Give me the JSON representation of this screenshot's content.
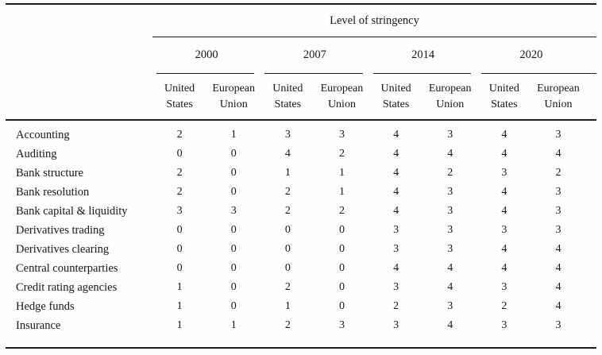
{
  "table": {
    "spanner": "Level of stringency",
    "year_groups": [
      {
        "year": "2000"
      },
      {
        "year": "2007"
      },
      {
        "year": "2014"
      },
      {
        "year": "2020"
      }
    ],
    "sub_headers": {
      "us_line1": "United",
      "us_line2": "States",
      "eu_line1": "European",
      "eu_line2": "Union"
    },
    "rows": [
      {
        "label": "Accounting",
        "values": [
          "2",
          "1",
          "3",
          "3",
          "4",
          "3",
          "4",
          "3"
        ]
      },
      {
        "label": "Auditing",
        "values": [
          "0",
          "0",
          "4",
          "2",
          "4",
          "4",
          "4",
          "4"
        ]
      },
      {
        "label": "Bank structure",
        "values": [
          "2",
          "0",
          "1",
          "1",
          "4",
          "2",
          "3",
          "2"
        ]
      },
      {
        "label": "Bank resolution",
        "values": [
          "2",
          "0",
          "2",
          "1",
          "4",
          "3",
          "4",
          "3"
        ]
      },
      {
        "label": "Bank capital & liquidity",
        "values": [
          "3",
          "3",
          "2",
          "2",
          "4",
          "3",
          "4",
          "3"
        ]
      },
      {
        "label": "Derivatives trading",
        "values": [
          "0",
          "0",
          "0",
          "0",
          "3",
          "3",
          "3",
          "3"
        ]
      },
      {
        "label": "Derivatives clearing",
        "values": [
          "0",
          "0",
          "0",
          "0",
          "3",
          "3",
          "4",
          "4"
        ]
      },
      {
        "label": "Central counterparties",
        "values": [
          "0",
          "0",
          "0",
          "0",
          "4",
          "4",
          "4",
          "4"
        ]
      },
      {
        "label": "Credit rating agencies",
        "values": [
          "1",
          "0",
          "2",
          "0",
          "3",
          "4",
          "3",
          "4"
        ]
      },
      {
        "label": "Hedge funds",
        "values": [
          "1",
          "0",
          "1",
          "0",
          "2",
          "3",
          "2",
          "4"
        ]
      },
      {
        "label": "Insurance",
        "values": [
          "1",
          "1",
          "2",
          "3",
          "3",
          "4",
          "3",
          "3"
        ]
      }
    ]
  },
  "colors": {
    "text": "#161616",
    "rule": "#1c1c1c",
    "background": "#fefefe"
  }
}
